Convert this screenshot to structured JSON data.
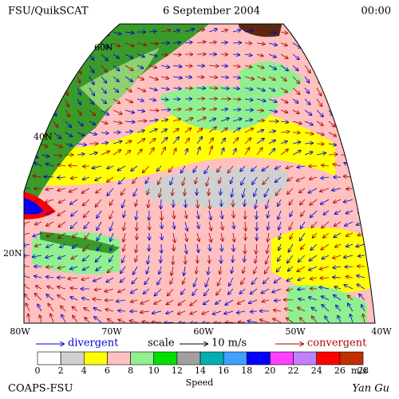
{
  "header": {
    "left": "FSU/QuikSCAT",
    "center": "6 September 2004",
    "right": "00:00"
  },
  "map": {
    "lat_labels": [
      "60N",
      "40N",
      "20N"
    ],
    "lon_labels": [
      "80W",
      "70W",
      "60W",
      "50W",
      "40W"
    ]
  },
  "legend": {
    "divergent": "divergent",
    "scale": "scale",
    "scale_value": "10 m/s",
    "convergent": "convergent"
  },
  "colorbar": {
    "ticks": [
      0,
      2,
      4,
      6,
      8,
      10,
      12,
      14,
      16,
      18,
      20,
      22,
      24,
      26,
      28
    ],
    "unit": "m/s",
    "title": "Speed",
    "colors": [
      "#ffffff",
      "#d0d0d0",
      "#ffff00",
      "#ffc0c0",
      "#90f090",
      "#00e000",
      "#a0a0a0",
      "#00b0b0",
      "#40a0ff",
      "#0000ff",
      "#ff40ff",
      "#c080ff",
      "#ff0000",
      "#c03000"
    ]
  },
  "footer": {
    "left": "COAPS-FSU",
    "right": "Yan Gu"
  }
}
